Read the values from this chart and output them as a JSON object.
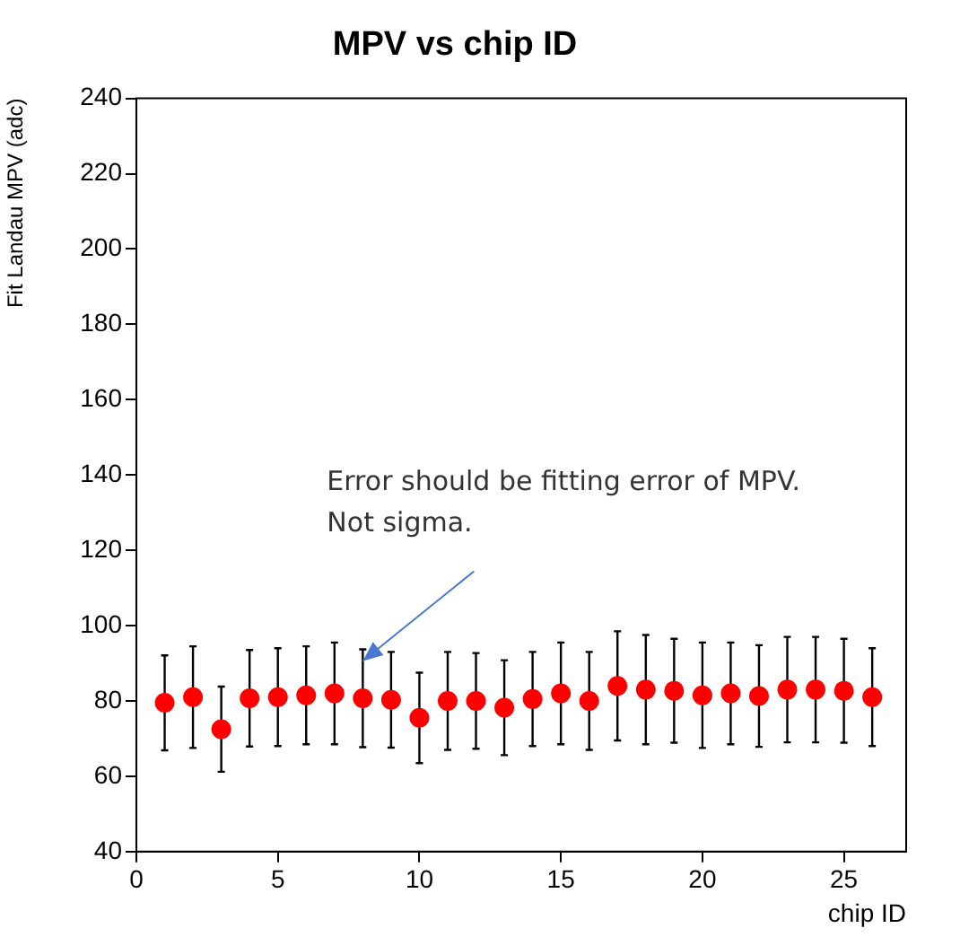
{
  "chart_data": {
    "type": "scatter",
    "title": "MPV vs chip ID",
    "xlabel": "chip ID",
    "ylabel": "Fit Landau MPV (adc)",
    "x": [
      1,
      2,
      3,
      4,
      5,
      6,
      7,
      8,
      9,
      10,
      11,
      12,
      13,
      14,
      15,
      16,
      17,
      18,
      19,
      20,
      21,
      22,
      23,
      24,
      25,
      26
    ],
    "series": [
      {
        "color": "#ff0000",
        "values": [
          79.5,
          81,
          72.5,
          80.7,
          81,
          81.5,
          82,
          80.7,
          80.3,
          75.5,
          80,
          80,
          78.2,
          80.5,
          82,
          80,
          84,
          83,
          82.7,
          81.5,
          82,
          81.3,
          83,
          83,
          82.7,
          81
        ],
        "errors": [
          12.6,
          13.5,
          11.3,
          12.8,
          13,
          13,
          13.5,
          13,
          12.7,
          12,
          13,
          12.7,
          12.6,
          12.5,
          13.5,
          13,
          14.5,
          14.5,
          13.8,
          14,
          13.5,
          13.5,
          14,
          14,
          13.8,
          13
        ]
      }
    ],
    "xlim": [
      0,
      27.2
    ],
    "ylim": [
      40,
      240
    ],
    "xticks": [
      0,
      5,
      10,
      15,
      20,
      25
    ],
    "yticks": [
      40,
      60,
      80,
      100,
      120,
      140,
      160,
      180,
      200,
      220,
      240
    ],
    "grid": false,
    "marker": "circle",
    "annotations": [
      {
        "text": "Error should be fitting error of MPV. Not sigma.",
        "x": 8,
        "y": 90.6
      }
    ]
  }
}
